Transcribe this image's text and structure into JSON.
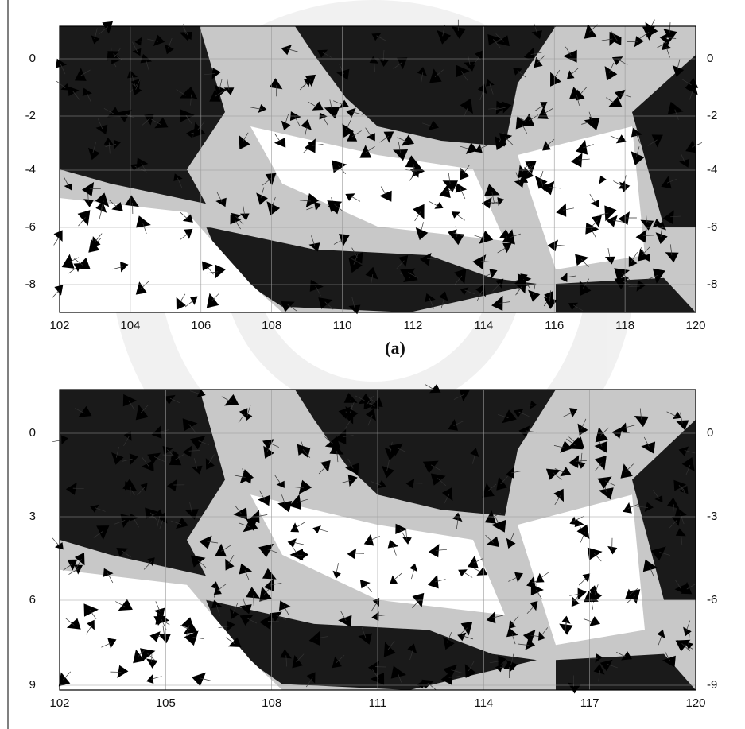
{
  "figures": [
    {
      "x_ticks": [
        "102",
        "104",
        "106",
        "108",
        "110",
        "112",
        "114",
        "116",
        "118",
        "120"
      ],
      "left_ticks": [
        "0",
        "-2",
        "-4",
        "-6",
        "-8"
      ],
      "right_ticks": [
        "0",
        "-2",
        "-4",
        "-6",
        "-8"
      ],
      "caption": "(a)"
    },
    {
      "x_ticks": [
        "102",
        "105",
        "108",
        "111",
        "114",
        "117",
        "120"
      ],
      "left_ticks": [
        "0",
        "3",
        "6",
        "9"
      ],
      "right_ticks": [
        "0",
        "-3",
        "-6",
        "-9"
      ]
    }
  ]
}
